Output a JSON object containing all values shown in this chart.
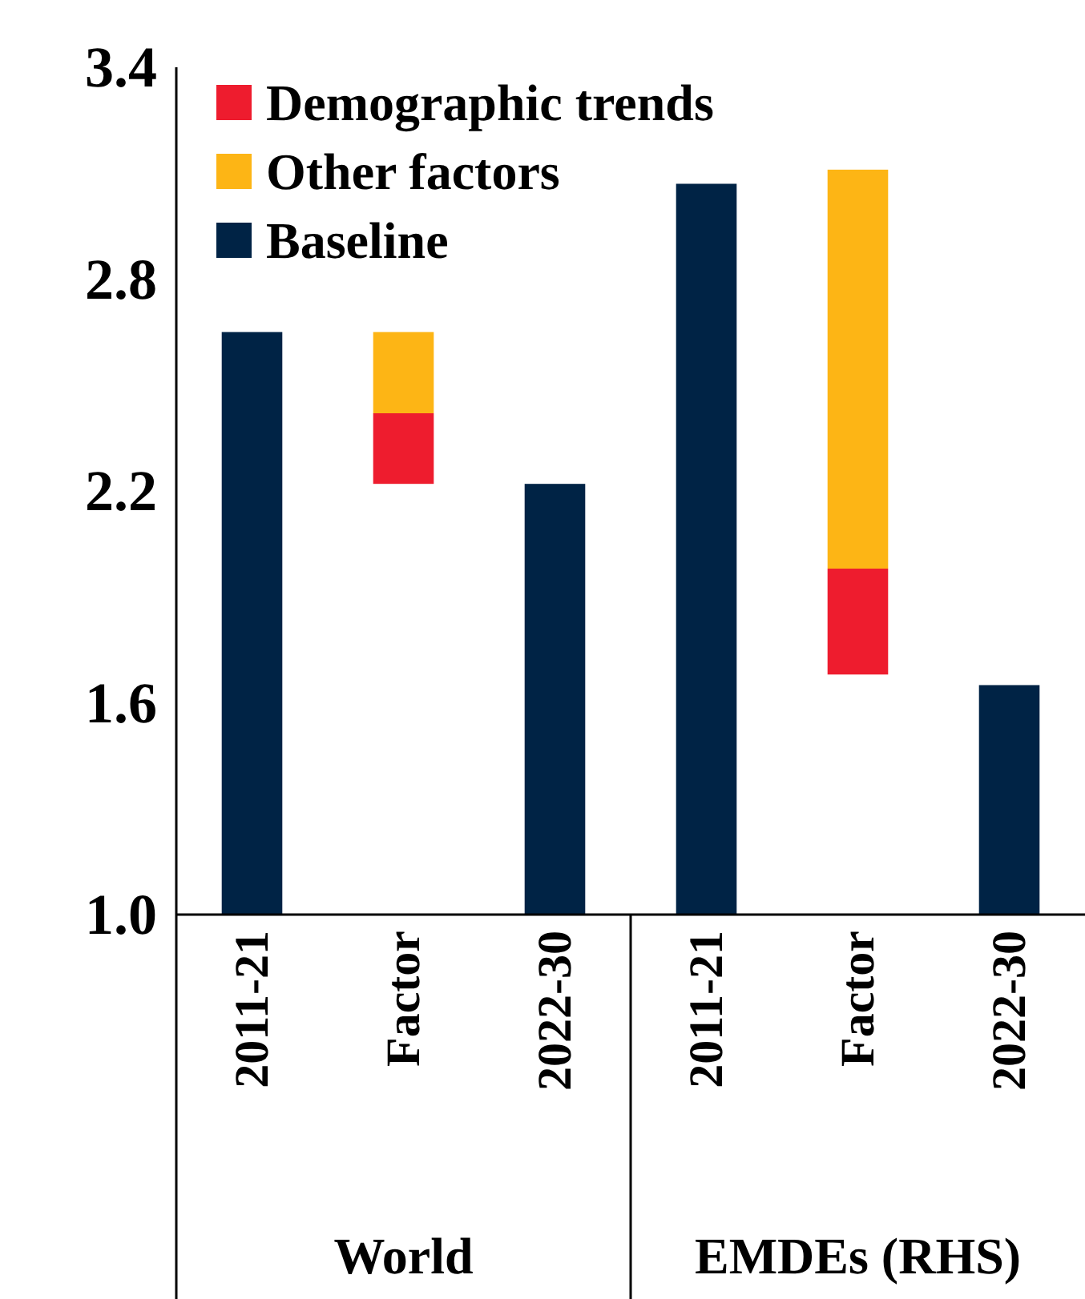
{
  "chart_data": {
    "type": "bar",
    "categories": [
      "2011-21",
      "Factor",
      "2022-30",
      "2011-21",
      "Factor",
      "2022-30"
    ],
    "annotations": [
      "World",
      "EMDEs (RHS)"
    ],
    "series": [
      {
        "name": "Demographic trends",
        "color": "#ee1c2e",
        "values": [
          null,
          0.2,
          null,
          null,
          0.3,
          null
        ],
        "base": [
          null,
          2.22,
          null,
          null,
          1.68,
          null
        ]
      },
      {
        "name": "Other factors",
        "color": "#fdb515",
        "values": [
          null,
          0.23,
          null,
          null,
          1.13,
          null
        ],
        "base": [
          null,
          2.42,
          null,
          null,
          1.98,
          null
        ]
      },
      {
        "name": "Baseline",
        "color": "#002345",
        "values": [
          1.65,
          null,
          1.22,
          2.07,
          null,
          0.65
        ],
        "base": [
          1.0,
          null,
          1.0,
          1.0,
          null,
          1.0
        ]
      }
    ],
    "ylim": [
      1.0,
      3.4
    ],
    "yticks": [
      {
        "value": 1.0,
        "label": "1.0"
      },
      {
        "value": 1.6,
        "label": "1.6"
      },
      {
        "value": 2.2,
        "label": "2.2"
      },
      {
        "value": 2.8,
        "label": "2.8"
      },
      {
        "value": 3.4,
        "label": "3.4"
      }
    ],
    "legend": "top left",
    "grid": false
  }
}
